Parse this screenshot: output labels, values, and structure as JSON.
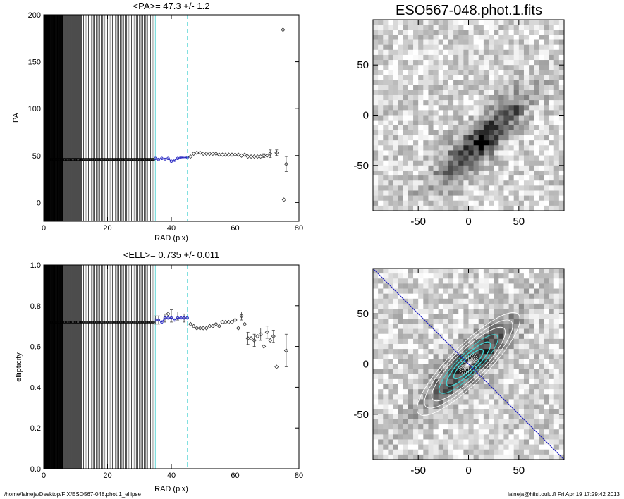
{
  "footer": {
    "path": "/home/laineja/Desktop/FIX/ESO567-048.phot.1_ellipse",
    "user_date": "laineja@hiisi.oulu.fi  Fri Apr 19 17:29:42 2013"
  },
  "colors": {
    "fit_points": "#2020c0",
    "limit_lines": "#7fdfe0",
    "major_axis": "#2020c0"
  },
  "chart_data": [
    {
      "type": "scatter",
      "title": "<PA>=  47.3 +/-   1.2",
      "xlabel": "RAD (pix)",
      "ylabel": "PA",
      "xlim": [
        0,
        80
      ],
      "ylim": [
        -20,
        200
      ],
      "xticks": [
        "0",
        "20",
        "40",
        "60",
        "80"
      ],
      "yticks": [
        "0",
        "50",
        "100",
        "150",
        "200"
      ],
      "vlines": [
        35,
        45
      ],
      "inner_points": {
        "x_from": 0.5,
        "x_to": 34.5,
        "step": 0.5,
        "y": 46
      },
      "fit_points": [
        [
          35,
          47
        ],
        [
          36,
          46
        ],
        [
          37,
          47
        ],
        [
          38,
          46
        ],
        [
          39,
          47
        ],
        [
          40,
          44
        ],
        [
          41,
          45
        ],
        [
          42,
          47
        ],
        [
          43,
          48
        ],
        [
          44,
          48
        ],
        [
          45,
          48
        ]
      ],
      "outer_points": [
        [
          46,
          49
        ],
        [
          47,
          52
        ],
        [
          48,
          53
        ],
        [
          49,
          53
        ],
        [
          50,
          52
        ],
        [
          51,
          52
        ],
        [
          52,
          52
        ],
        [
          53,
          52
        ],
        [
          54,
          52
        ],
        [
          55,
          51
        ],
        [
          56,
          51
        ],
        [
          57,
          51
        ],
        [
          58,
          51
        ],
        [
          59,
          51
        ],
        [
          60,
          51
        ],
        [
          61,
          51
        ],
        [
          62,
          50
        ],
        [
          63,
          51
        ],
        [
          64,
          49
        ],
        [
          65,
          49
        ],
        [
          66,
          49
        ],
        [
          67,
          49
        ],
        [
          68,
          49
        ],
        [
          69,
          50
        ],
        [
          70,
          50
        ],
        [
          71,
          52
        ],
        [
          73,
          53
        ],
        [
          75,
          184
        ],
        [
          75.3,
          3
        ],
        [
          76,
          41
        ]
      ],
      "error_bars": [
        [
          69,
          50,
          2
        ],
        [
          71,
          52,
          4
        ],
        [
          73,
          53,
          3
        ],
        [
          76,
          41,
          8
        ]
      ]
    },
    {
      "type": "scatter",
      "title": "<ELL>= 0.735 +/-  0.011",
      "xlabel": "RAD (pix)",
      "ylabel": "ellipticity",
      "xlim": [
        0,
        80
      ],
      "ylim": [
        0,
        1
      ],
      "xticks": [
        "0",
        "20",
        "40",
        "60",
        "80"
      ],
      "yticks": [
        "0.0",
        "0.2",
        "0.4",
        "0.6",
        "0.8",
        "1.0"
      ],
      "vlines": [
        35,
        45
      ],
      "inner_points": {
        "x_from": 0.5,
        "x_to": 34.5,
        "step": 0.5,
        "y": 0.72
      },
      "fit_points": [
        [
          35,
          0.73
        ],
        [
          36,
          0.73
        ],
        [
          37,
          0.72
        ],
        [
          38,
          0.74
        ],
        [
          39,
          0.74
        ],
        [
          40,
          0.74
        ],
        [
          41,
          0.73
        ],
        [
          42,
          0.74
        ],
        [
          43,
          0.74
        ],
        [
          44,
          0.74
        ],
        [
          45,
          0.74
        ]
      ],
      "outer_points": [
        [
          39,
          0.76
        ],
        [
          46,
          0.71
        ],
        [
          47,
          0.7
        ],
        [
          48,
          0.69
        ],
        [
          49,
          0.69
        ],
        [
          50,
          0.69
        ],
        [
          51,
          0.69
        ],
        [
          52,
          0.7
        ],
        [
          53,
          0.7
        ],
        [
          54,
          0.71
        ],
        [
          55,
          0.7
        ],
        [
          56,
          0.72
        ],
        [
          57,
          0.72
        ],
        [
          58,
          0.72
        ],
        [
          59,
          0.72
        ],
        [
          60,
          0.73
        ],
        [
          61,
          0.69
        ],
        [
          62,
          0.75
        ],
        [
          63,
          0.71
        ],
        [
          64,
          0.64
        ],
        [
          65,
          0.64
        ],
        [
          66,
          0.63
        ],
        [
          67,
          0.65
        ],
        [
          68,
          0.66
        ],
        [
          69,
          0.6
        ],
        [
          70,
          0.67
        ],
        [
          71,
          0.63
        ],
        [
          72,
          0.65
        ],
        [
          73,
          0.5
        ],
        [
          76,
          0.58
        ]
      ],
      "error_bars": [
        [
          35,
          0.73,
          0.02
        ],
        [
          36,
          0.73,
          0.02
        ],
        [
          38,
          0.74,
          0.02
        ],
        [
          40,
          0.75,
          0.03
        ],
        [
          42,
          0.75,
          0.02
        ],
        [
          44,
          0.74,
          0.02
        ],
        [
          62,
          0.75,
          0.02
        ],
        [
          64,
          0.64,
          0.03
        ],
        [
          66,
          0.63,
          0.03
        ],
        [
          68,
          0.66,
          0.03
        ],
        [
          70,
          0.67,
          0.03
        ],
        [
          72,
          0.65,
          0.03
        ],
        [
          76,
          0.58,
          0.08
        ]
      ]
    },
    {
      "type": "heatmap",
      "title": "ESO567-048.phot.1.fits",
      "xlim": [
        -95,
        95
      ],
      "ylim": [
        -95,
        95
      ],
      "xticks": [
        "-50",
        "0",
        "50"
      ],
      "yticks": [
        "-50",
        "0",
        "50"
      ],
      "galaxy": {
        "center": [
          12,
          -25
        ],
        "position_angle_deg": 45,
        "major": 60,
        "minor": 16,
        "nucleus": [
          12,
          -28
        ],
        "knot": [
          48,
          5
        ]
      }
    },
    {
      "type": "heatmap",
      "xlim": [
        -95,
        95
      ],
      "ylim": [
        -95,
        95
      ],
      "xticks": [
        "-50",
        "0",
        "50"
      ],
      "yticks": [
        "-50",
        "0",
        "50"
      ],
      "ellipses": {
        "center": [
          0,
          0
        ],
        "position_angle_deg": 45,
        "ellipticity": 0.735,
        "semi_major": [
          20,
          30,
          40,
          50,
          60,
          70
        ]
      },
      "major_axis_slope": 1
    }
  ]
}
